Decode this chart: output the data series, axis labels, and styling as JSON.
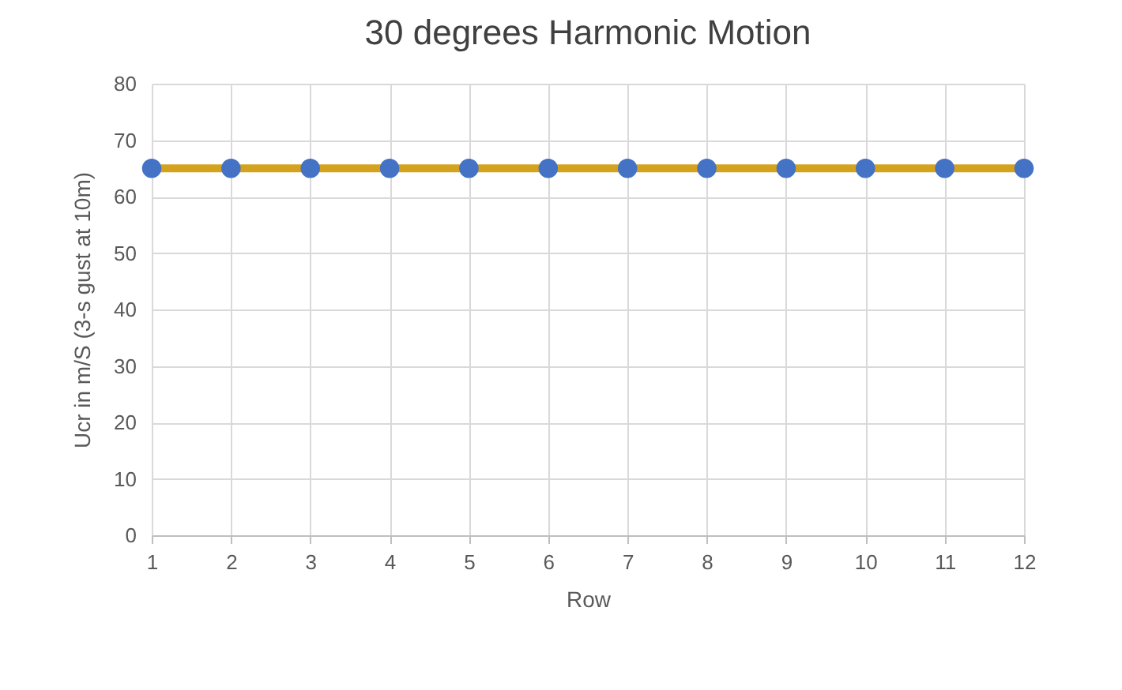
{
  "chart_data": {
    "type": "line",
    "title": "30 degrees Harmonic Motion",
    "xlabel": "Row",
    "ylabel": "Ucr in m/S (3-s gust at 10m)",
    "x": [
      1,
      2,
      3,
      4,
      5,
      6,
      7,
      8,
      9,
      10,
      11,
      12
    ],
    "series": [
      {
        "type": "line",
        "color": "#d4a21c",
        "marker": "none",
        "values": [
          65,
          65,
          65,
          65,
          65,
          65,
          65,
          65,
          65,
          65,
          65,
          65
        ]
      },
      {
        "type": "scatter",
        "color": "#4472c4",
        "marker": "circle",
        "values": [
          65,
          65,
          65,
          65,
          65,
          65,
          65,
          65,
          65,
          65,
          65,
          65
        ]
      }
    ],
    "xlim": [
      1,
      12
    ],
    "xticks": [
      1,
      2,
      3,
      4,
      5,
      6,
      7,
      8,
      9,
      10,
      11,
      12
    ],
    "ylim": [
      0,
      80
    ],
    "yticks": [
      0,
      10,
      20,
      30,
      40,
      50,
      60,
      70,
      80
    ],
    "grid": true,
    "legend": false
  }
}
